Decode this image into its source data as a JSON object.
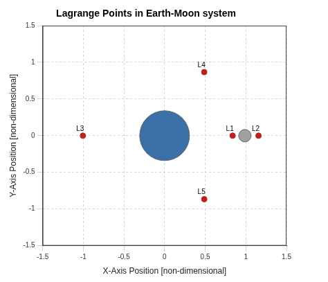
{
  "chart_data": {
    "type": "scatter",
    "title": "Lagrange Points in Earth-Moon system",
    "x_label": "X-Axis Position [non-dimensional]",
    "y_label": "Y-Axis Position [non-dimensional]",
    "xlim": [
      -1.5,
      1.5
    ],
    "ylim": [
      -1.5,
      1.5
    ],
    "xticks": [
      -1.5,
      -1,
      -0.5,
      0,
      0.5,
      1,
      1.5
    ],
    "yticks": [
      -1.5,
      -1,
      -0.5,
      0,
      0.5,
      1,
      1.5
    ],
    "grid": true,
    "series": [
      {
        "labels": [
          "L1",
          "L2",
          "L3",
          "L4",
          "L5"
        ],
        "x": [
          0.837,
          1.156,
          -1.005,
          0.488,
          0.488
        ],
        "y": [
          0,
          0,
          0,
          0.866,
          -0.866
        ],
        "color": "#c0201a",
        "marker": "circle"
      },
      {
        "x": [
          0,
          0.988
        ],
        "y": [
          0,
          0
        ],
        "colors": [
          "#3a6fa8",
          "#a0a0a0"
        ],
        "marker": "circle"
      }
    ]
  }
}
